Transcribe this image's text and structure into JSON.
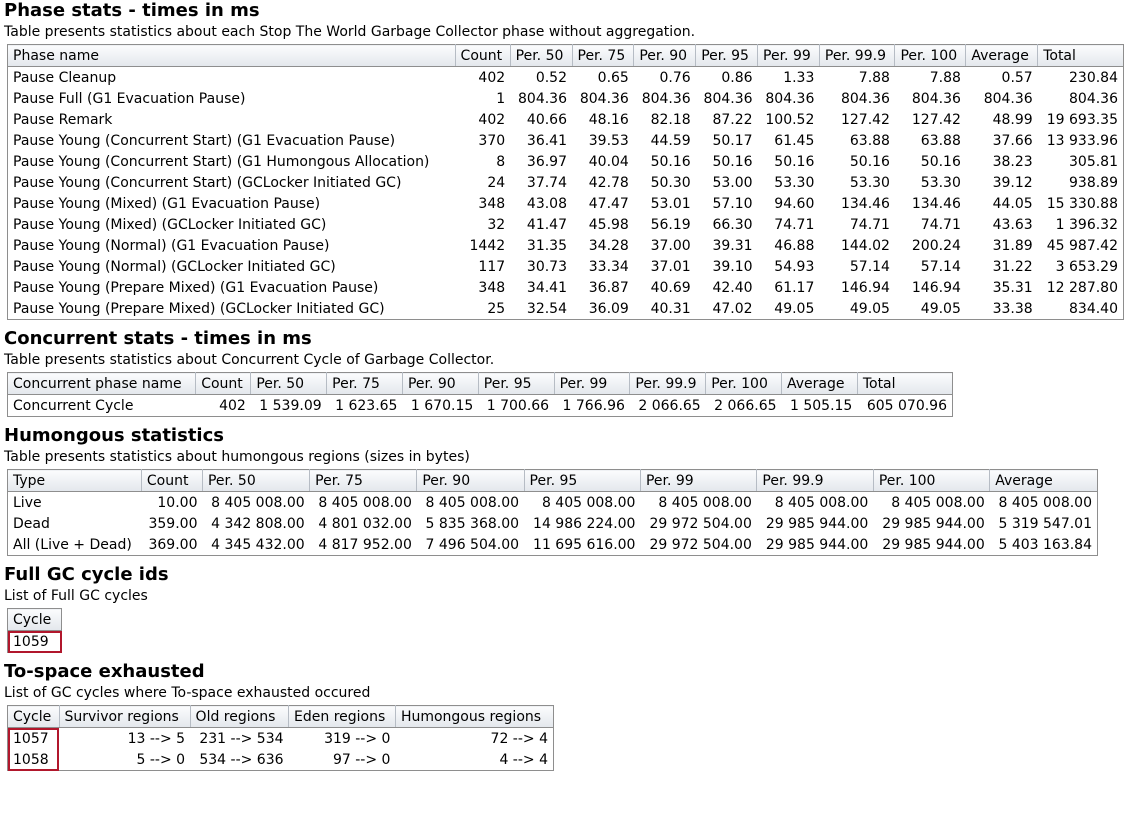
{
  "phase": {
    "title": "Phase stats - times in ms",
    "description": "Table presents statistics about each Stop The World Garbage Collector phase without aggregation.",
    "headers": [
      "Phase name",
      "Count",
      "Per. 50",
      "Per. 75",
      "Per. 90",
      "Per. 95",
      "Per. 99",
      "Per. 99.9",
      "Per. 100",
      "Average",
      "Total"
    ],
    "rows": [
      [
        "Pause Cleanup",
        "402",
        "0.52",
        "0.65",
        "0.76",
        "0.86",
        "1.33",
        "7.88",
        "7.88",
        "0.57",
        "230.84"
      ],
      [
        "Pause Full (G1 Evacuation Pause)",
        "1",
        "804.36",
        "804.36",
        "804.36",
        "804.36",
        "804.36",
        "804.36",
        "804.36",
        "804.36",
        "804.36"
      ],
      [
        "Pause Remark",
        "402",
        "40.66",
        "48.16",
        "82.18",
        "87.22",
        "100.52",
        "127.42",
        "127.42",
        "48.99",
        "19 693.35"
      ],
      [
        "Pause Young (Concurrent Start) (G1 Evacuation Pause)",
        "370",
        "36.41",
        "39.53",
        "44.59",
        "50.17",
        "61.45",
        "63.88",
        "63.88",
        "37.66",
        "13 933.96"
      ],
      [
        "Pause Young (Concurrent Start) (G1 Humongous Allocation)",
        "8",
        "36.97",
        "40.04",
        "50.16",
        "50.16",
        "50.16",
        "50.16",
        "50.16",
        "38.23",
        "305.81"
      ],
      [
        "Pause Young (Concurrent Start) (GCLocker Initiated GC)",
        "24",
        "37.74",
        "42.78",
        "50.30",
        "53.00",
        "53.30",
        "53.30",
        "53.30",
        "39.12",
        "938.89"
      ],
      [
        "Pause Young (Mixed) (G1 Evacuation Pause)",
        "348",
        "43.08",
        "47.47",
        "53.01",
        "57.10",
        "94.60",
        "134.46",
        "134.46",
        "44.05",
        "15 330.88"
      ],
      [
        "Pause Young (Mixed) (GCLocker Initiated GC)",
        "32",
        "41.47",
        "45.98",
        "56.19",
        "66.30",
        "74.71",
        "74.71",
        "74.71",
        "43.63",
        "1 396.32"
      ],
      [
        "Pause Young (Normal) (G1 Evacuation Pause)",
        "1442",
        "31.35",
        "34.28",
        "37.00",
        "39.31",
        "46.88",
        "144.02",
        "200.24",
        "31.89",
        "45 987.42"
      ],
      [
        "Pause Young (Normal) (GCLocker Initiated GC)",
        "117",
        "30.73",
        "33.34",
        "37.01",
        "39.10",
        "54.93",
        "57.14",
        "57.14",
        "31.22",
        "3 653.29"
      ],
      [
        "Pause Young (Prepare Mixed) (G1 Evacuation Pause)",
        "348",
        "34.41",
        "36.87",
        "40.69",
        "42.40",
        "61.17",
        "146.94",
        "146.94",
        "35.31",
        "12 287.80"
      ],
      [
        "Pause Young (Prepare Mixed) (GCLocker Initiated GC)",
        "25",
        "32.54",
        "36.09",
        "40.31",
        "47.02",
        "49.05",
        "49.05",
        "49.05",
        "33.38",
        "834.40"
      ]
    ]
  },
  "concurrent": {
    "title": "Concurrent stats - times in ms",
    "description": "Table presents statistics about Concurrent Cycle of Garbage Collector.",
    "headers": [
      "Concurrent phase name",
      "Count",
      "Per. 50",
      "Per. 75",
      "Per. 90",
      "Per. 95",
      "Per. 99",
      "Per. 99.9",
      "Per. 100",
      "Average",
      "Total"
    ],
    "rows": [
      [
        "Concurrent Cycle",
        "402",
        "1 539.09",
        "1 623.65",
        "1 670.15",
        "1 700.66",
        "1 766.96",
        "2 066.65",
        "2 066.65",
        "1 505.15",
        "605 070.96"
      ]
    ]
  },
  "humongous": {
    "title": "Humongous statistics",
    "description": "Table presents statistics about humongous regions (sizes in bytes)",
    "headers": [
      "Type",
      "Count",
      "Per. 50",
      "Per. 75",
      "Per. 90",
      "Per. 95",
      "Per. 99",
      "Per. 99.9",
      "Per. 100",
      "Average"
    ],
    "rows": [
      [
        "Live",
        "10.00",
        "8 405 008.00",
        "8 405 008.00",
        "8 405 008.00",
        "8 405 008.00",
        "8 405 008.00",
        "8 405 008.00",
        "8 405 008.00",
        "8 405 008.00"
      ],
      [
        "Dead",
        "359.00",
        "4 342 808.00",
        "4 801 032.00",
        "5 835 368.00",
        "14 986 224.00",
        "29 972 504.00",
        "29 985 944.00",
        "29 985 944.00",
        "5 319 547.01"
      ],
      [
        "All (Live + Dead)",
        "369.00",
        "4 345 432.00",
        "4 817 952.00",
        "7 496 504.00",
        "11 695 616.00",
        "29 972 504.00",
        "29 985 944.00",
        "29 985 944.00",
        "5 403 163.84"
      ]
    ]
  },
  "fullgc": {
    "title": "Full GC cycle ids",
    "description": "List of Full GC cycles",
    "headers": [
      "Cycle"
    ],
    "rows": [
      [
        "1059"
      ]
    ]
  },
  "tospace": {
    "title": "To-space exhausted",
    "description": "List of GC cycles where To-space exhausted occured",
    "headers": [
      "Cycle",
      "Survivor regions",
      "Old regions",
      "Eden regions",
      "Humongous regions"
    ],
    "rows": [
      [
        "1057",
        "13 --> 5",
        "231 --> 534",
        "319 --> 0",
        "72 --> 4"
      ],
      [
        "1058",
        "5 --> 0",
        "534 --> 636",
        "97 --> 0",
        "4 --> 4"
      ]
    ]
  },
  "colors": {
    "highlight_border": "#b1172c",
    "header_bg": "#e3e7ec",
    "table_border": "#8e8e8e"
  }
}
